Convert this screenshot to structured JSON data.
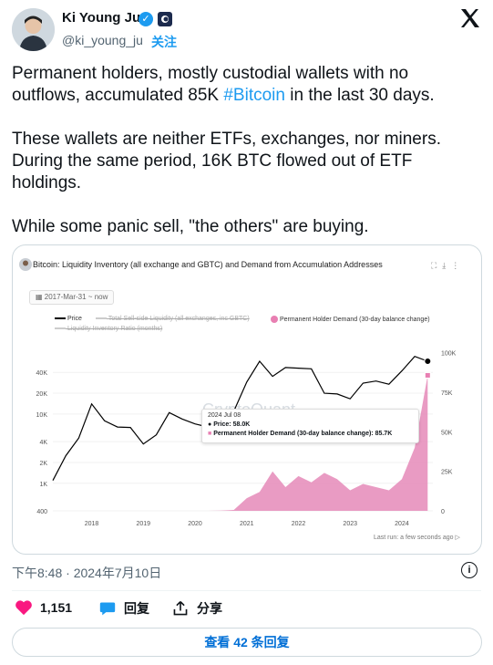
{
  "author": {
    "name": "Ki Young Ju",
    "handle": "@ki_young_ju",
    "follow_label": "关注"
  },
  "tweet": {
    "line1": "Permanent holders, mostly custodial wallets with no outflows, accumulated 85K ",
    "hashtag": "#Bitcoin",
    "line1_end": " in the last 30 days.",
    "para2": "These wallets are neither ETFs, exchanges, nor miners. During the same period, 16K BTC flowed out of ETF holdings.",
    "para3": "While some panic sell, \"the others\" are buying."
  },
  "chart": {
    "title": "Bitcoin: Liquidity Inventory (all exchange and GBTC) and Demand from Accumulation Addresses",
    "date_range": "2017-Mar-31 ~ now",
    "legend": {
      "price": "Price",
      "liquidity": "Total Sell-side Liquidity (all exchanges, inc GBTC)",
      "demand": "Permanent Holder Demand (30-day balance change)",
      "ratio": "Liquidity Inventory Ratio (months)"
    },
    "tooltip": {
      "date": "2024 Jul 08",
      "price_label": "Price: 58.0K",
      "demand_label": "Permanent Holder Demand (30-day balance change): 85.7K"
    },
    "watermark": "CryptoQuant",
    "last_run": "Last run: a few seconds ago",
    "left_ticks": [
      "40K",
      "20K",
      "10K",
      "4K",
      "2K",
      "1K",
      "400"
    ],
    "right_ticks": [
      "100K",
      "75K",
      "50K",
      "25K",
      "0"
    ],
    "x_ticks": [
      "2018",
      "2019",
      "2020",
      "2021",
      "2022",
      "2023",
      "2024"
    ]
  },
  "chart_data": {
    "type": "line",
    "x": [
      2017.25,
      2017.5,
      2017.75,
      2018.0,
      2018.25,
      2018.5,
      2018.75,
      2019.0,
      2019.25,
      2019.5,
      2019.75,
      2020.0,
      2020.25,
      2020.5,
      2020.75,
      2021.0,
      2021.25,
      2021.5,
      2021.75,
      2022.0,
      2022.25,
      2022.5,
      2022.75,
      2023.0,
      2023.25,
      2023.5,
      2023.75,
      2024.0,
      2024.25,
      2024.5
    ],
    "series": [
      {
        "name": "Price",
        "values": [
          1100,
          2500,
          4500,
          14000,
          8000,
          6500,
          6400,
          3700,
          5000,
          10500,
          8500,
          7200,
          6500,
          9200,
          11000,
          29000,
          58000,
          35000,
          47000,
          46000,
          45000,
          20000,
          19500,
          16600,
          28000,
          30000,
          27000,
          42000,
          68000,
          58000
        ]
      },
      {
        "name": "Permanent Holder Demand (30-day balance change)",
        "values": [
          0,
          0,
          0,
          0,
          0,
          0,
          0,
          0,
          0,
          0,
          0,
          0,
          0,
          200,
          600,
          8000,
          12000,
          25000,
          15000,
          22000,
          18000,
          24000,
          20000,
          13000,
          17000,
          15000,
          13000,
          20000,
          40000,
          85700
        ]
      }
    ]
  },
  "footer": {
    "timestamp": "下午8:48 · 2024年7月10日"
  },
  "actions": {
    "likes": "1,151",
    "reply": "回复",
    "share": "分享"
  },
  "more_replies": "查看 42 条回复"
}
